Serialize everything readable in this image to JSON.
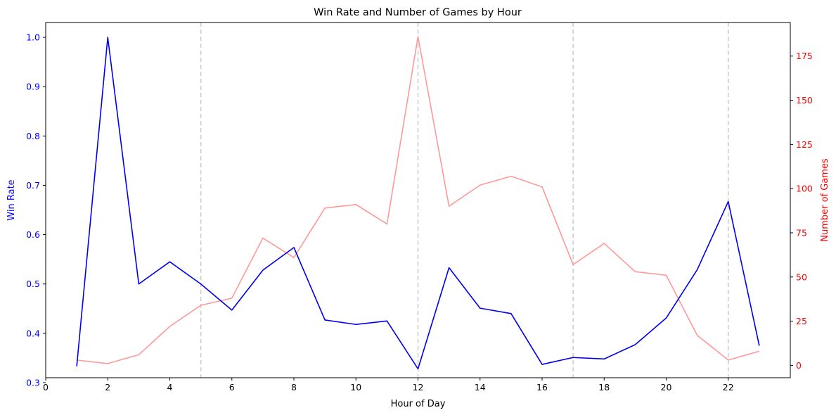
{
  "chart_data": {
    "type": "line",
    "title": "Win Rate and Number of Games by Hour",
    "xlabel": "Hour of Day",
    "ylabel_left": "Win Rate",
    "ylabel_right": "Number of Games",
    "xlim": [
      0,
      24
    ],
    "ylim_left": [
      0.31,
      1.03
    ],
    "ylim_right": [
      -7,
      194
    ],
    "x_ticks": [
      0,
      2,
      4,
      6,
      8,
      10,
      12,
      14,
      16,
      18,
      20,
      22
    ],
    "y_left_ticks": [
      0.3,
      0.4,
      0.5,
      0.6,
      0.7,
      0.8,
      0.9,
      1.0
    ],
    "y_left_tick_labels": [
      "0.3",
      "0.4",
      "0.5",
      "0.6",
      "0.7",
      "0.8",
      "0.9",
      "1.0"
    ],
    "y_right_ticks": [
      0,
      25,
      50,
      75,
      100,
      125,
      150,
      175
    ],
    "grid": false,
    "vertical_reference_lines": [
      5,
      12,
      17,
      22
    ],
    "x": [
      1,
      2,
      3,
      4,
      5,
      6,
      7,
      8,
      9,
      10,
      11,
      12,
      13,
      14,
      15,
      16,
      17,
      18,
      19,
      20,
      21,
      22,
      23
    ],
    "series": [
      {
        "axis": "left",
        "color": "#0000ee",
        "values": [
          0.333,
          1.0,
          0.5,
          0.545,
          0.5,
          0.447,
          0.528,
          0.574,
          0.427,
          0.418,
          0.425,
          0.328,
          0.533,
          0.451,
          0.44,
          0.337,
          0.351,
          0.348,
          0.377,
          0.431,
          0.529,
          0.667,
          0.375
        ]
      },
      {
        "axis": "right",
        "color": "#ff9999",
        "values": [
          3,
          1,
          6,
          22,
          34,
          38,
          72,
          61,
          89,
          91,
          80,
          186,
          90,
          102,
          107,
          101,
          57,
          69,
          53,
          51,
          17,
          3,
          8
        ]
      }
    ],
    "colors": {
      "left_axis": "#0000ff",
      "right_axis": "#ff0000",
      "reference_line": "#cccccc"
    }
  }
}
